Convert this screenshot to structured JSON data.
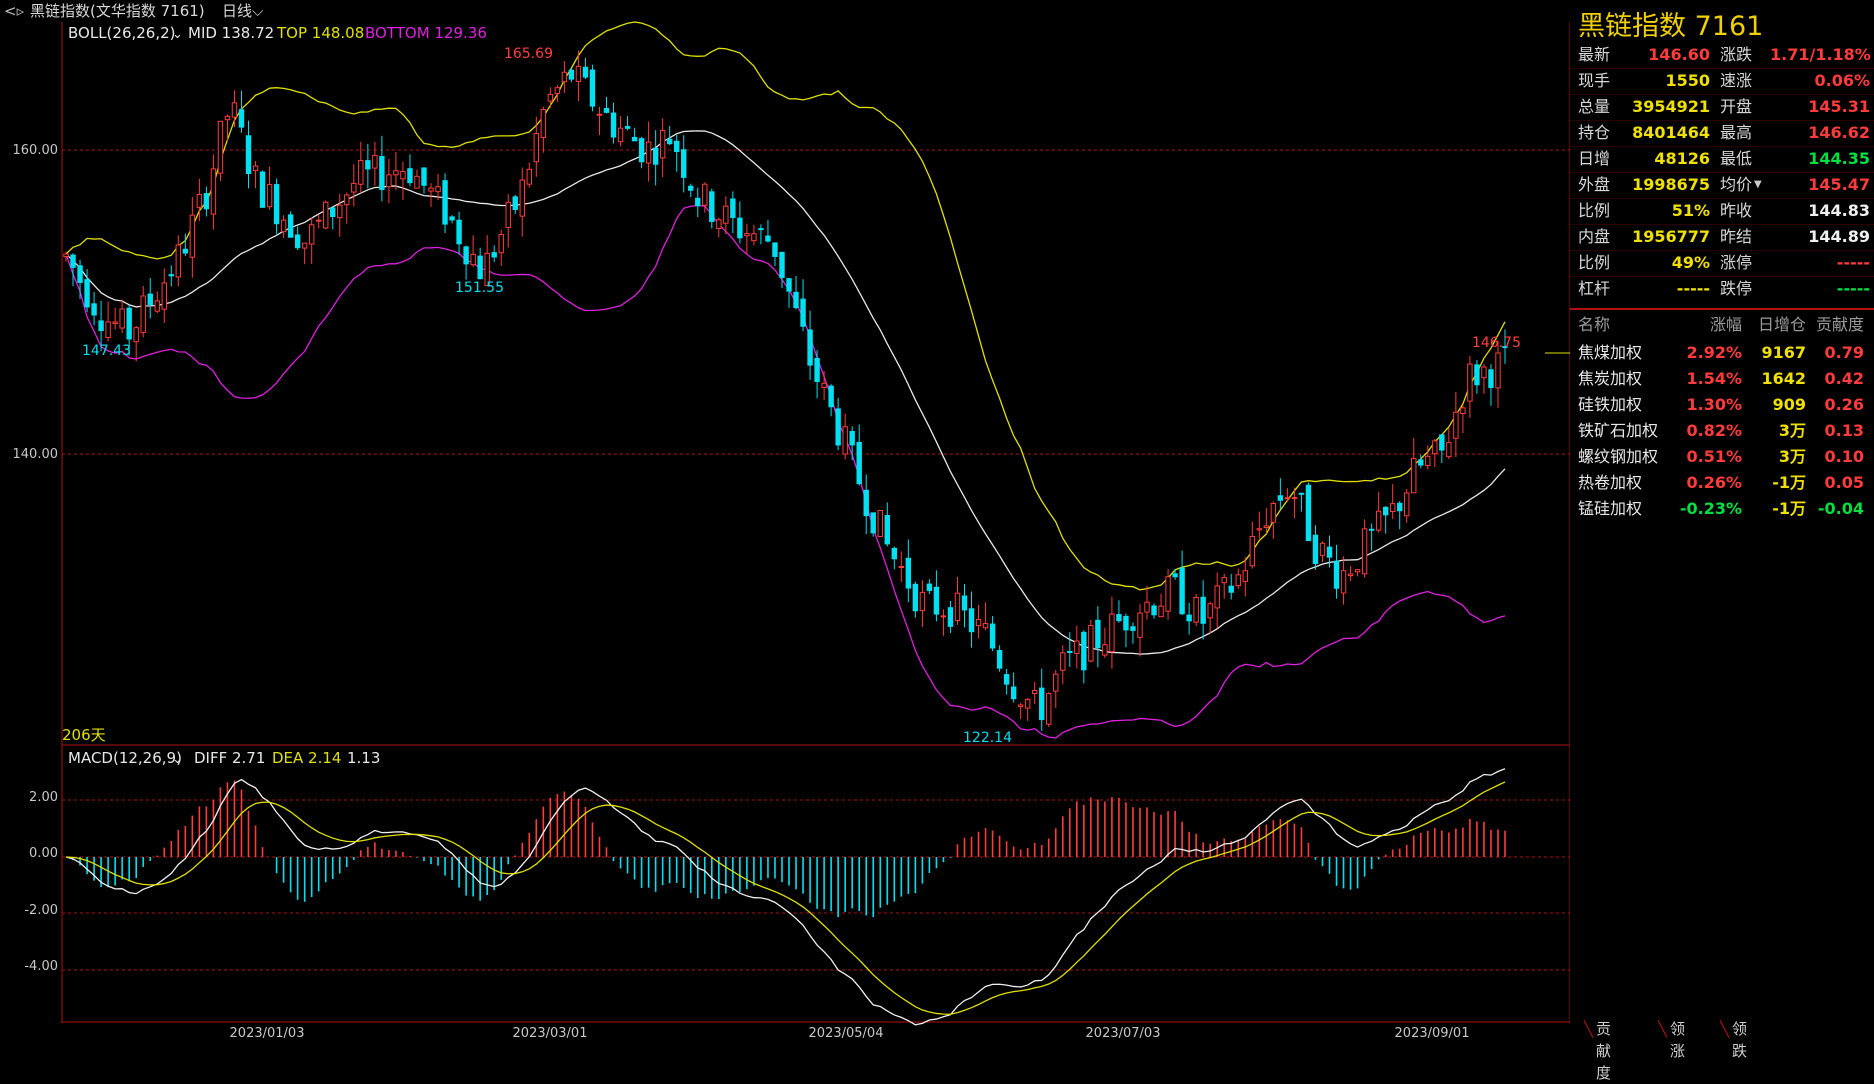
{
  "header": {
    "back_icon": "back-arrow-icon",
    "title": "黑链指数(文华指数  7161)",
    "period": "日线"
  },
  "main_chart": {
    "boll_label": "BOLL(26,26,2)",
    "mid": "MID 138.72",
    "top": "TOP 148.08",
    "bottom": "BOTTOM 129.36",
    "y_ticks": [
      "160.00",
      "140.00"
    ],
    "days_label": "206天",
    "annotations": {
      "high1": "165.69",
      "low1": "147.43",
      "low2": "151.55",
      "low3": "122.14",
      "high2": "146.75"
    }
  },
  "macd_chart": {
    "label": "MACD(12,26,9)",
    "diff": "DIFF 2.71",
    "dea": "DEA 2.14",
    "macd": "1.13",
    "y_ticks": [
      "2.00",
      "0.00",
      "-2.00",
      "-4.00"
    ]
  },
  "x_axis": [
    "2023/01/03",
    "2023/03/01",
    "2023/05/04",
    "2023/07/03",
    "2023/09/01"
  ],
  "colors": {
    "up": "#ff3b3b",
    "down": "#00e0f0",
    "mid": "#e8e8e8",
    "top": "#e0e000",
    "bottom": "#e020e0",
    "grid": "#b01010"
  },
  "quote": {
    "title": "黑链指数  7161",
    "rows": [
      {
        "l1": "最新",
        "v1": "146.60",
        "c1": "red",
        "l2": "涨跌",
        "v2": "1.71/1.18%",
        "c2": "red"
      },
      {
        "l1": "现手",
        "v1": "1550",
        "c1": "yellow",
        "l2": "速涨",
        "v2": "0.06%",
        "c2": "red"
      },
      {
        "l1": "总量",
        "v1": "3954921",
        "c1": "yellow",
        "l2": "开盘",
        "v2": "145.31",
        "c2": "red"
      },
      {
        "l1": "持仓",
        "v1": "8401464",
        "c1": "yellow",
        "l2": "最高",
        "v2": "146.62",
        "c2": "red"
      },
      {
        "l1": "日增",
        "v1": "48126",
        "c1": "yellow",
        "l2": "最低",
        "v2": "144.35",
        "c2": "green"
      },
      {
        "l1": "外盘",
        "v1": "1998675",
        "c1": "yellow",
        "l2": "均价",
        "v2": "145.47",
        "c2": "red"
      },
      {
        "l1": "比例",
        "v1": "51%",
        "c1": "yellow",
        "l2": "昨收",
        "v2": "144.83",
        "c2": "white"
      },
      {
        "l1": "内盘",
        "v1": "1956777",
        "c1": "yellow",
        "l2": "昨结",
        "v2": "144.89",
        "c2": "white"
      },
      {
        "l1": "比例",
        "v1": "49%",
        "c1": "yellow",
        "l2": "涨停",
        "v2": "-----",
        "c2": "red"
      },
      {
        "l1": "杠杆",
        "v1": "-----",
        "c1": "yellow",
        "l2": "跌停",
        "v2": "-----",
        "c2": "green"
      }
    ]
  },
  "components": {
    "headers": [
      "名称",
      "涨幅",
      "日增仓",
      "贡献度"
    ],
    "rows": [
      {
        "name": "焦煤加权",
        "chg": "2.92%",
        "cc": "red",
        "oi": "9167",
        "contrib": "0.79",
        "ct": "red"
      },
      {
        "name": "焦炭加权",
        "chg": "1.54%",
        "cc": "red",
        "oi": "1642",
        "contrib": "0.42",
        "ct": "red"
      },
      {
        "name": "硅铁加权",
        "chg": "1.30%",
        "cc": "red",
        "oi": "909",
        "contrib": "0.26",
        "ct": "red"
      },
      {
        "name": "铁矿石加权",
        "chg": "0.82%",
        "cc": "red",
        "oi": "3万",
        "contrib": "0.13",
        "ct": "red"
      },
      {
        "name": "螺纹钢加权",
        "chg": "0.51%",
        "cc": "red",
        "oi": "3万",
        "contrib": "0.10",
        "ct": "red"
      },
      {
        "name": "热卷加权",
        "chg": "0.26%",
        "cc": "red",
        "oi": "-1万",
        "contrib": "0.05",
        "ct": "red"
      },
      {
        "name": "锰硅加权",
        "chg": "-0.23%",
        "cc": "green",
        "oi": "-1万",
        "contrib": "-0.04",
        "ct": "green"
      }
    ]
  },
  "tabs": [
    "贡献度",
    "领涨",
    "领跌"
  ]
}
